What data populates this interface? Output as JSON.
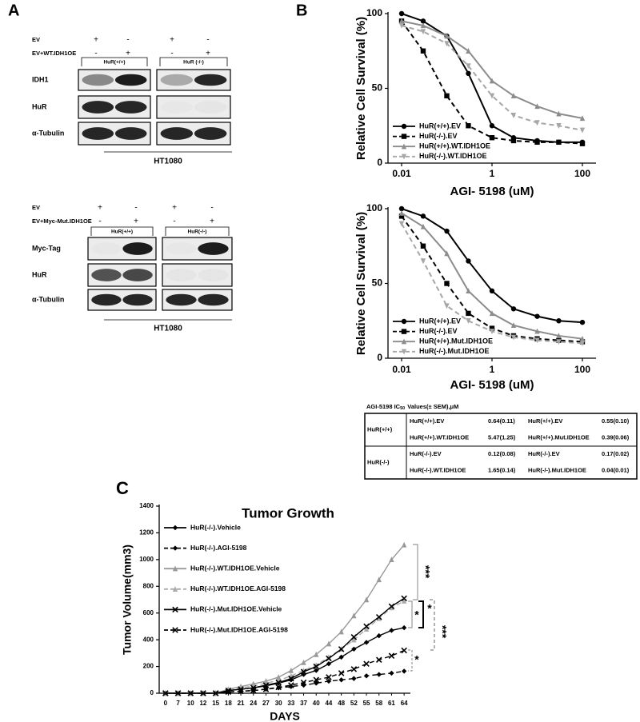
{
  "panel_labels": [
    "A",
    "B",
    "C"
  ],
  "blots": [
    {
      "rows": [
        {
          "label": "EV",
          "signs": [
            "+",
            "-",
            "+",
            "-"
          ]
        },
        {
          "label": "EV+WT.IDH1OE",
          "signs": [
            "-",
            "+",
            "-",
            "+"
          ]
        }
      ],
      "groups": [
        "HuR(+/+)",
        "HuR (-/-)"
      ],
      "bands": [
        "IDH1",
        "HuR",
        "α-Tubulin"
      ],
      "cell_line": "HT1080"
    },
    {
      "rows": [
        {
          "label": "EV",
          "signs": [
            "+",
            "-",
            "+",
            "-"
          ]
        },
        {
          "label": "EV+Myc-Mut.IDH1OE",
          "signs": [
            "-",
            "+",
            "-",
            "+"
          ]
        }
      ],
      "groups": [
        "HuR(+/+)",
        "HuR(-/-)"
      ],
      "bands": [
        "Myc-Tag",
        "HuR",
        "α-Tubulin"
      ],
      "cell_line": "HT1080"
    }
  ],
  "table": {
    "title": "AGI-5198 IC",
    "title_sub": "50",
    "title_rest": "Values(± SEM),μM",
    "groups": [
      {
        "label": "HuR(+/+)",
        "rows": [
          [
            "HuR(+/+).EV",
            "0.64(0.11)",
            "HuR(+/+).EV",
            "0.55(0.10)"
          ],
          [
            "HuR(+/+).WT.IDH1OE",
            "5.47(1.25)",
            "HuR(+/+).Mut.IDH1OE",
            "0.39(0.06)"
          ]
        ]
      },
      {
        "label": "HuR(-/-)",
        "rows": [
          [
            "HuR(-/-).EV",
            "0.12(0.08)",
            "HuR(-/-).EV",
            "0.17(0.02)"
          ],
          [
            "HuR(-/-).WT.IDH1OE",
            "1.65(0.14)",
            "HuR(-/-).Mut.IDH1OE",
            "0.04(0.01)"
          ]
        ]
      }
    ]
  },
  "chart_data": [
    {
      "type": "line",
      "ylabel": "Relative Cell Survival (%)",
      "xlabel": "AGI- 5198 (uM)",
      "xscale": "log",
      "x": [
        0.01,
        0.03,
        0.1,
        0.3,
        1,
        3,
        10,
        30,
        100
      ],
      "xlim": [
        0.005,
        200
      ],
      "xticks": [
        0.01,
        1,
        100
      ],
      "ylim": [
        0,
        100
      ],
      "yticks": [
        0,
        50,
        100
      ],
      "legend": "lower left",
      "series": [
        {
          "name": "HuR(+/+).EV",
          "color": "#000000",
          "dash": false,
          "marker": "circle",
          "values": [
            100,
            95,
            85,
            60,
            25,
            17,
            15,
            14,
            14
          ]
        },
        {
          "name": "HuR(-/-).EV",
          "color": "#000000",
          "dash": true,
          "marker": "square",
          "values": [
            95,
            75,
            45,
            25,
            17,
            15,
            14,
            14,
            13
          ]
        },
        {
          "name": "HuR(+/+).WT.IDH1OE",
          "color": "#8c8c8c",
          "dash": false,
          "marker": "triangle",
          "values": [
            95,
            92,
            85,
            75,
            55,
            45,
            38,
            33,
            30
          ]
        },
        {
          "name": "HuR(-/-).WT.IDH1OE",
          "color": "#a6a6a6",
          "dash": true,
          "marker": "tridown",
          "values": [
            92,
            88,
            80,
            65,
            45,
            32,
            27,
            25,
            22
          ]
        }
      ]
    },
    {
      "type": "line",
      "ylabel": "Relative Cell Survival (%)",
      "xlabel": "AGI- 5198 (uM)",
      "xscale": "log",
      "x": [
        0.01,
        0.03,
        0.1,
        0.3,
        1,
        3,
        10,
        30,
        100
      ],
      "xlim": [
        0.005,
        200
      ],
      "xticks": [
        0.01,
        1,
        100
      ],
      "ylim": [
        0,
        100
      ],
      "yticks": [
        0,
        50,
        100
      ],
      "legend": "lower left",
      "series": [
        {
          "name": "HuR(+/+).EV",
          "color": "#000000",
          "dash": false,
          "marker": "circle",
          "values": [
            100,
            95,
            85,
            65,
            45,
            33,
            28,
            25,
            24
          ]
        },
        {
          "name": "HuR(-/-).EV",
          "color": "#000000",
          "dash": true,
          "marker": "square",
          "values": [
            95,
            75,
            50,
            30,
            20,
            15,
            13,
            12,
            11
          ]
        },
        {
          "name": "HuR(+/+).Mut.IDH1OE",
          "color": "#8c8c8c",
          "dash": false,
          "marker": "triangle",
          "values": [
            97,
            88,
            70,
            45,
            30,
            22,
            18,
            15,
            13
          ]
        },
        {
          "name": "HuR(-/-).Mut.IDH1OE",
          "color": "#a6a6a6",
          "dash": true,
          "marker": "tridown",
          "values": [
            90,
            65,
            35,
            25,
            18,
            14,
            12,
            11,
            10
          ]
        }
      ]
    },
    {
      "type": "line",
      "title": "Tumor Growth",
      "ylabel": "Tumor Volume(mm3)",
      "xlabel": "DAYS",
      "categories": [
        "0",
        "7",
        "10",
        "12",
        "15",
        "18",
        "21",
        "24",
        "27",
        "30",
        "33",
        "37",
        "40",
        "44",
        "48",
        "52",
        "55",
        "58",
        "61",
        "64"
      ],
      "ylim": [
        0,
        1400
      ],
      "yticks": [
        0,
        200,
        400,
        600,
        800,
        1000,
        1200,
        1400
      ],
      "legend": "upper left",
      "series": [
        {
          "name": "HuR(-/-).Vehicle",
          "color": "#000000",
          "dash": false,
          "marker": "diamond",
          "values": [
            0,
            0,
            0,
            0,
            0,
            20,
            30,
            40,
            55,
            75,
            100,
            140,
            170,
            220,
            270,
            330,
            380,
            430,
            470,
            490
          ]
        },
        {
          "name": "HuR(-/-).AGI-5198",
          "color": "#000000",
          "dash": true,
          "marker": "diamond",
          "values": [
            0,
            0,
            0,
            0,
            0,
            10,
            15,
            20,
            30,
            40,
            50,
            60,
            75,
            90,
            100,
            110,
            130,
            140,
            150,
            165
          ]
        },
        {
          "name": "HuR(-/-).WT.IDH1OE.Vehicle",
          "color": "#999999",
          "dash": false,
          "marker": "triangle",
          "values": [
            0,
            0,
            0,
            0,
            0,
            30,
            50,
            70,
            90,
            120,
            170,
            230,
            290,
            370,
            460,
            580,
            700,
            850,
            1000,
            1110
          ]
        },
        {
          "name": "HuR(-/-).WT.IDH1OE.AGI-5198",
          "color": "#aaaaaa",
          "dash": true,
          "marker": "triangle",
          "values": [
            0,
            0,
            0,
            0,
            0,
            25,
            40,
            55,
            75,
            95,
            130,
            170,
            210,
            270,
            330,
            400,
            480,
            560,
            640,
            690
          ]
        },
        {
          "name": "HuR(-/-).Mut.IDH1OE.Vehicle",
          "color": "#000000",
          "dash": false,
          "marker": "x",
          "values": [
            0,
            0,
            0,
            0,
            0,
            20,
            30,
            40,
            60,
            80,
            110,
            160,
            200,
            260,
            330,
            420,
            500,
            570,
            650,
            710
          ]
        },
        {
          "name": "HuR(-/-).Mut.IDH1OE.AGI-5198",
          "color": "#000000",
          "dash": true,
          "marker": "x",
          "values": [
            0,
            0,
            0,
            0,
            0,
            10,
            15,
            20,
            30,
            45,
            60,
            80,
            100,
            120,
            150,
            180,
            220,
            250,
            280,
            320
          ]
        }
      ],
      "annotations": [
        {
          "text": "***",
          "color": "#999999"
        },
        {
          "text": "*",
          "color": "#999999"
        },
        {
          "text": "*",
          "color": "#000000"
        },
        {
          "text": "***",
          "color": "#999999"
        },
        {
          "text": "*",
          "color": "#999999"
        }
      ]
    }
  ]
}
